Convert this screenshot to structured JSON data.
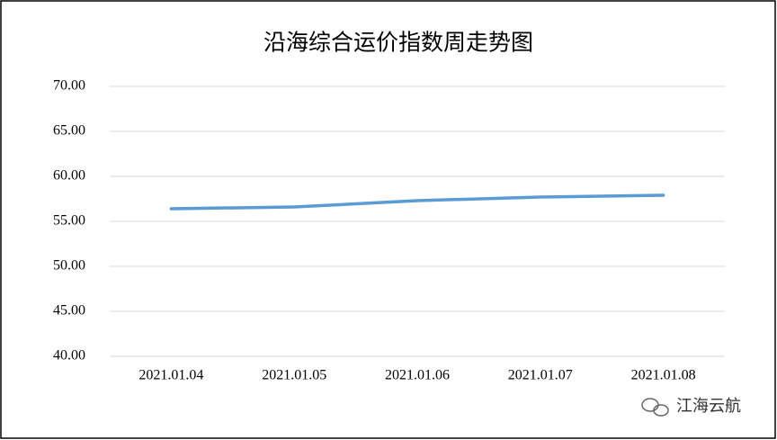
{
  "chart_data": {
    "type": "line",
    "title": "沿海综合运价指数周走势图",
    "categories": [
      "2021.01.04",
      "2021.01.05",
      "2021.01.06",
      "2021.01.07",
      "2021.01.08"
    ],
    "series": [
      {
        "color": "#5b9bd5",
        "values": [
          56.4,
          56.6,
          57.3,
          57.7,
          57.9
        ]
      }
    ],
    "ylim": [
      40,
      70
    ],
    "yticks": [
      {
        "value": 40,
        "label": "40.00"
      },
      {
        "value": 45,
        "label": "45.00"
      },
      {
        "value": 50,
        "label": "50.00"
      },
      {
        "value": 55,
        "label": "55.00"
      },
      {
        "value": 60,
        "label": "60.00"
      },
      {
        "value": 65,
        "label": "65.00"
      },
      {
        "value": 70,
        "label": "70.00"
      }
    ],
    "grid": true,
    "watermark": "江海云航"
  }
}
